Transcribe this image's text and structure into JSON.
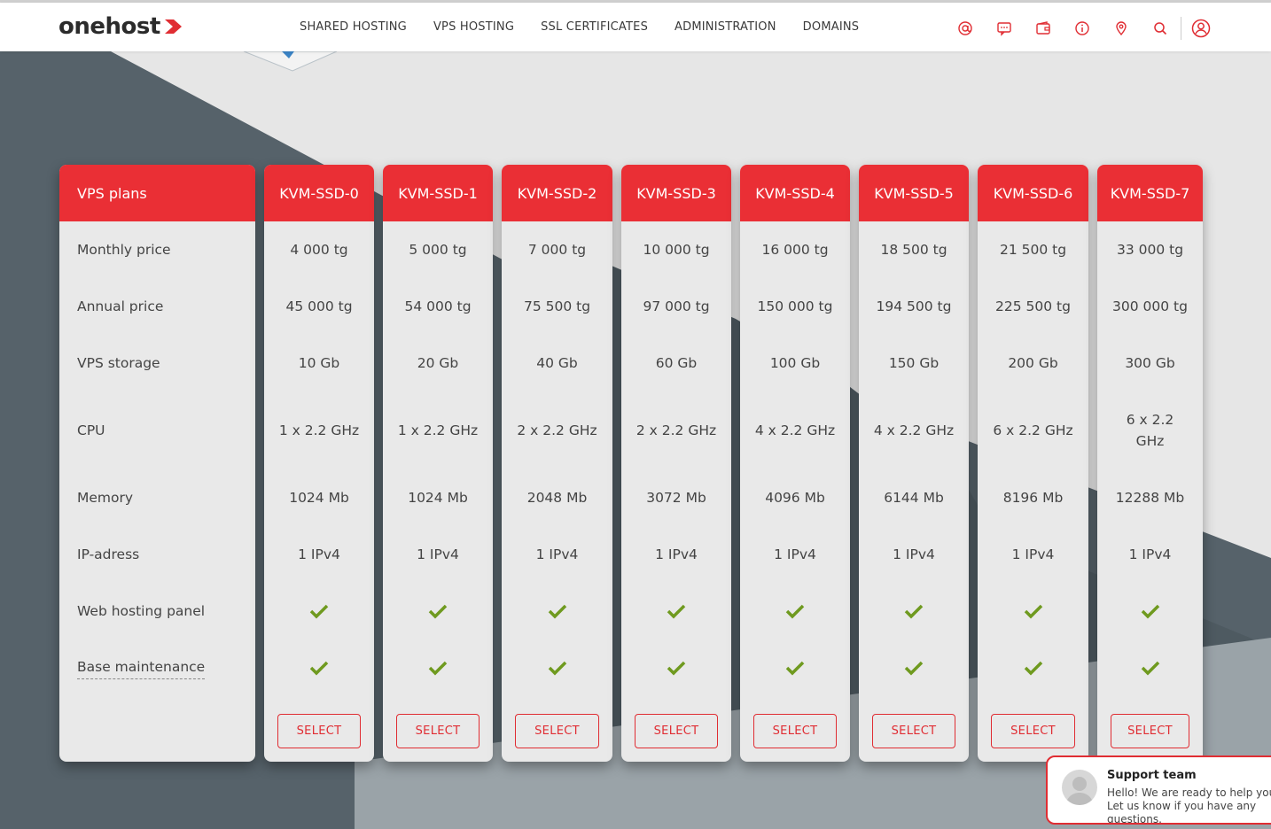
{
  "header": {
    "logo_text": "onehost",
    "nav": [
      "SHARED HOSTING",
      "VPS HOSTING",
      "SSL CERTIFICATES",
      "ADMINISTRATION",
      "DOMAINS"
    ],
    "icons": [
      "at-icon",
      "chat-icon",
      "wallet-icon",
      "info-icon",
      "location-icon",
      "search-icon",
      "user-icon"
    ]
  },
  "pricing": {
    "title": "VPS plans",
    "rows": [
      "Monthly price",
      "Annual price",
      "VPS storage",
      "CPU",
      "Memory",
      "IP-adress",
      "Web hosting panel",
      "Base maintenance"
    ],
    "select_label": "SELECT",
    "plans": [
      {
        "name": "KVM-SSD-0",
        "monthly": "4 000 tg",
        "annual": "45 000 tg",
        "storage": "10 Gb",
        "cpu": "1 x 2.2 GHz",
        "memory": "1024 Mb",
        "ip": "1 IPv4"
      },
      {
        "name": "KVM-SSD-1",
        "monthly": "5 000 tg",
        "annual": "54 000 tg",
        "storage": "20 Gb",
        "cpu": "1 x 2.2 GHz",
        "memory": "1024 Mb",
        "ip": "1 IPv4"
      },
      {
        "name": "KVM-SSD-2",
        "monthly": "7 000 tg",
        "annual": "75 500 tg",
        "storage": "40 Gb",
        "cpu": "2 x 2.2 GHz",
        "memory": "2048 Mb",
        "ip": "1 IPv4"
      },
      {
        "name": "KVM-SSD-3",
        "monthly": "10 000 tg",
        "annual": "97 000 tg",
        "storage": "60 Gb",
        "cpu": "2 x 2.2 GHz",
        "memory": "3072 Mb",
        "ip": "1 IPv4"
      },
      {
        "name": "KVM-SSD-4",
        "monthly": "16 000 tg",
        "annual": "150 000 tg",
        "storage": "100 Gb",
        "cpu": "4 x 2.2 GHz",
        "memory": "4096 Mb",
        "ip": "1 IPv4"
      },
      {
        "name": "KVM-SSD-5",
        "monthly": "18 500 tg",
        "annual": "194 500 tg",
        "storage": "150 Gb",
        "cpu": "4 x 2.2 GHz",
        "memory": "6144 Mb",
        "ip": "1 IPv4"
      },
      {
        "name": "KVM-SSD-6",
        "monthly": "21 500 tg",
        "annual": "225 500 tg",
        "storage": "200 Gb",
        "cpu": "6 x 2.2 GHz",
        "memory": "8196 Mb",
        "ip": "1 IPv4"
      },
      {
        "name": "KVM-SSD-7",
        "monthly": "33 000 tg",
        "annual": "300 000 tg",
        "storage": "300 Gb",
        "cpu": "6 x 2.2 GHz",
        "memory": "12288 Mb",
        "ip": "1 IPv4"
      }
    ]
  },
  "support": {
    "title": "Support team",
    "message": "Hello! We are ready to help you. Let us know if you have any questions."
  },
  "colors": {
    "accent": "#ea2f35",
    "check": "#6f9a1f",
    "dark_bg": "#535f67"
  }
}
